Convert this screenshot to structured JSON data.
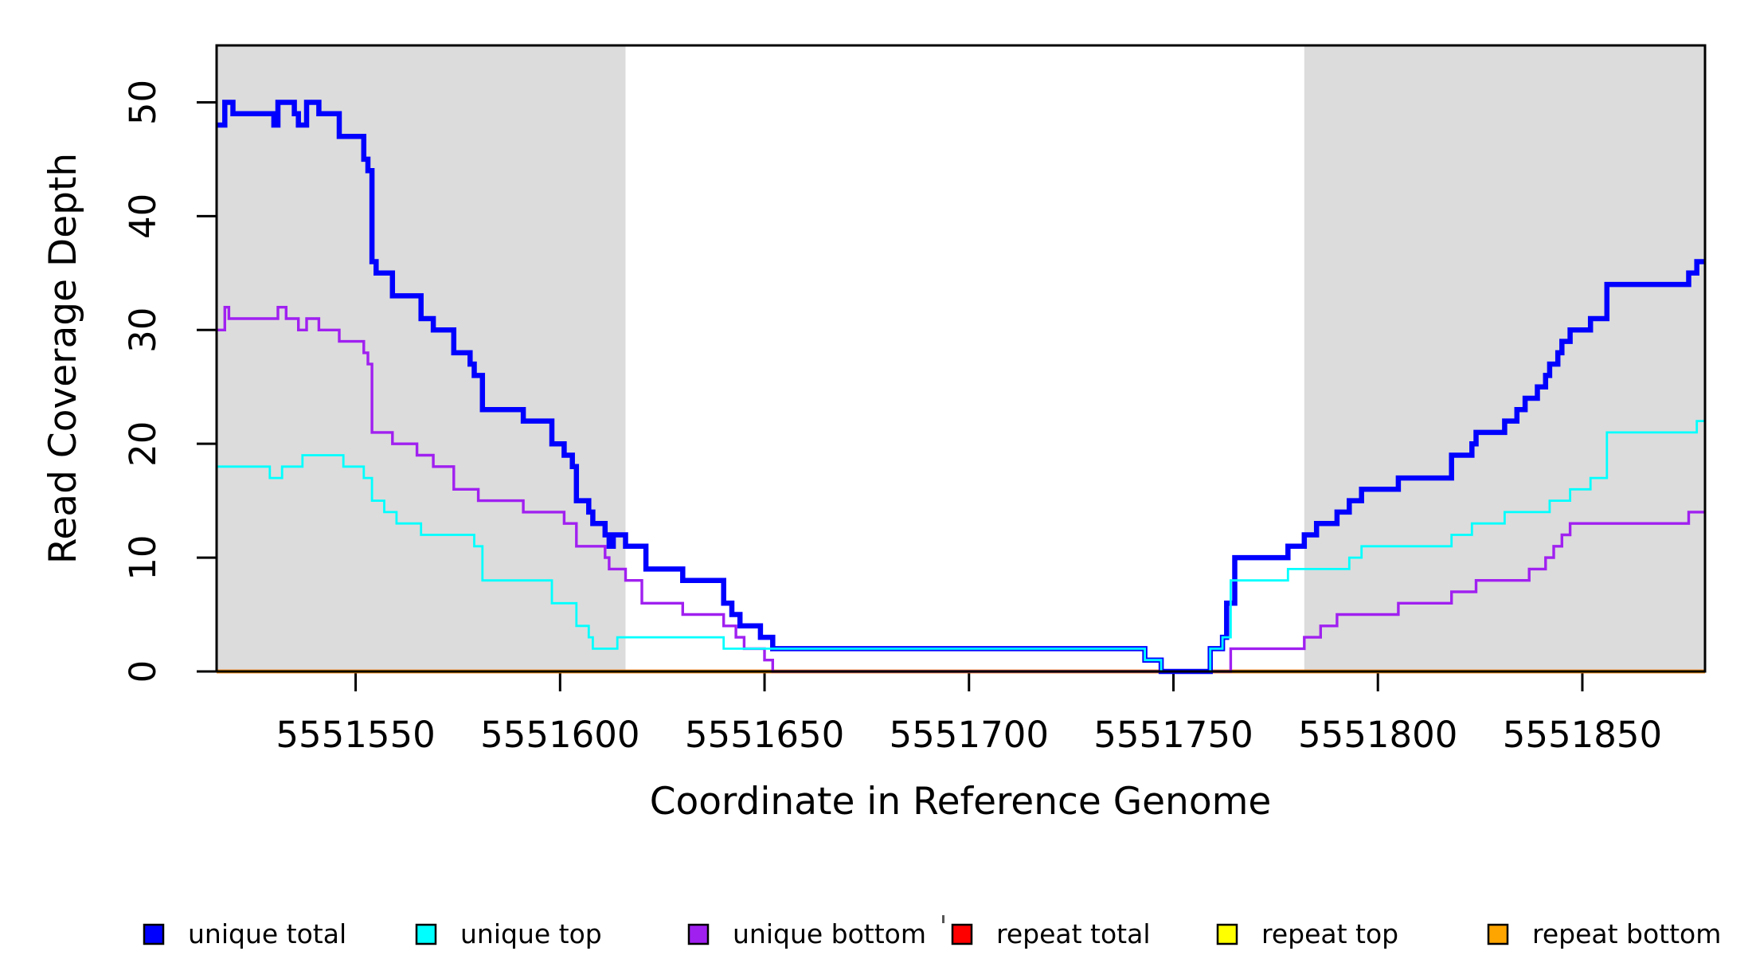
{
  "chart_data": {
    "type": "line",
    "subtype": "step-coverage-plot",
    "title": "",
    "xlabel": "Coordinate in Reference Genome",
    "ylabel": "Read Coverage Depth",
    "xlim": [
      5551516,
      5551880
    ],
    "ylim": [
      0,
      55
    ],
    "x_ticks": [
      5551550,
      5551600,
      5551650,
      5551700,
      5551750,
      5551800,
      5551850
    ],
    "y_ticks": [
      0,
      10,
      20,
      30,
      40,
      50
    ],
    "grid": "off",
    "legend_position": "bottom",
    "shade_color": "#DCDCDC",
    "background_color": "#FFFFFF",
    "shaded_regions": [
      {
        "x0": 5551516,
        "x1": 5551616
      },
      {
        "x0": 5551782,
        "x1": 5551880
      }
    ],
    "draw_order": [
      3,
      4,
      5,
      2,
      0,
      1
    ],
    "series": [
      {
        "name": "unique total",
        "color": "#0000FF",
        "width": 6.5,
        "steps": [
          [
            5551516,
            48
          ],
          [
            5551518,
            50
          ],
          [
            5551520,
            49
          ],
          [
            5551530,
            48
          ],
          [
            5551531,
            50
          ],
          [
            5551535,
            49
          ],
          [
            5551536,
            48
          ],
          [
            5551538,
            50
          ],
          [
            5551541,
            49
          ],
          [
            5551546,
            47
          ],
          [
            5551552,
            45
          ],
          [
            5551553,
            44
          ],
          [
            5551554,
            36
          ],
          [
            5551555,
            35
          ],
          [
            5551559,
            33
          ],
          [
            5551566,
            31
          ],
          [
            5551569,
            30
          ],
          [
            5551574,
            28
          ],
          [
            5551578,
            27
          ],
          [
            5551579,
            26
          ],
          [
            5551581,
            23
          ],
          [
            5551591,
            22
          ],
          [
            5551598,
            20
          ],
          [
            5551601,
            19
          ],
          [
            5551603,
            18
          ],
          [
            5551604,
            15
          ],
          [
            5551607,
            14
          ],
          [
            5551608,
            13
          ],
          [
            5551611,
            12
          ],
          [
            5551612,
            11
          ],
          [
            5551613,
            12
          ],
          [
            5551616,
            11
          ],
          [
            5551621,
            9
          ],
          [
            5551630,
            8
          ],
          [
            5551640,
            6
          ],
          [
            5551642,
            5
          ],
          [
            5551644,
            4
          ],
          [
            5551649,
            3
          ],
          [
            5551652,
            2
          ],
          [
            5551743,
            1
          ],
          [
            5551747,
            0
          ],
          [
            5551759,
            2
          ],
          [
            5551762,
            3
          ],
          [
            5551763,
            6
          ],
          [
            5551765,
            10
          ],
          [
            5551778,
            11
          ],
          [
            5551782,
            12
          ],
          [
            5551785,
            13
          ],
          [
            5551790,
            14
          ],
          [
            5551793,
            15
          ],
          [
            5551796,
            16
          ],
          [
            5551805,
            17
          ],
          [
            5551818,
            19
          ],
          [
            5551823,
            20
          ],
          [
            5551824,
            21
          ],
          [
            5551831,
            22
          ],
          [
            5551834,
            23
          ],
          [
            5551836,
            24
          ],
          [
            5551839,
            25
          ],
          [
            5551841,
            26
          ],
          [
            5551842,
            27
          ],
          [
            5551844,
            28
          ],
          [
            5551845,
            29
          ],
          [
            5551847,
            30
          ],
          [
            5551852,
            31
          ],
          [
            5551856,
            34
          ],
          [
            5551876,
            35
          ],
          [
            5551878,
            36
          ]
        ]
      },
      {
        "name": "unique top",
        "color": "#00FFFF",
        "width": 2.8,
        "steps": [
          [
            5551516,
            18
          ],
          [
            5551529,
            17
          ],
          [
            5551532,
            18
          ],
          [
            5551537,
            19
          ],
          [
            5551547,
            18
          ],
          [
            5551552,
            17
          ],
          [
            5551554,
            15
          ],
          [
            5551557,
            14
          ],
          [
            5551560,
            13
          ],
          [
            5551566,
            12
          ],
          [
            5551579,
            11
          ],
          [
            5551581,
            8
          ],
          [
            5551598,
            6
          ],
          [
            5551604,
            4
          ],
          [
            5551607,
            3
          ],
          [
            5551608,
            2
          ],
          [
            5551614,
            3
          ],
          [
            5551640,
            2
          ],
          [
            5551743,
            1
          ],
          [
            5551747,
            0
          ],
          [
            5551759,
            2
          ],
          [
            5551762,
            3
          ],
          [
            5551764,
            8
          ],
          [
            5551778,
            9
          ],
          [
            5551793,
            10
          ],
          [
            5551796,
            11
          ],
          [
            5551818,
            12
          ],
          [
            5551823,
            13
          ],
          [
            5551831,
            14
          ],
          [
            5551842,
            15
          ],
          [
            5551847,
            16
          ],
          [
            5551852,
            17
          ],
          [
            5551856,
            21
          ],
          [
            5551878,
            22
          ]
        ]
      },
      {
        "name": "unique bottom",
        "color": "#A020F0",
        "width": 3.4,
        "steps": [
          [
            5551516,
            30
          ],
          [
            5551518,
            32
          ],
          [
            5551519,
            31
          ],
          [
            5551531,
            32
          ],
          [
            5551533,
            31
          ],
          [
            5551536,
            30
          ],
          [
            5551538,
            31
          ],
          [
            5551541,
            30
          ],
          [
            5551546,
            29
          ],
          [
            5551552,
            28
          ],
          [
            5551553,
            27
          ],
          [
            5551554,
            21
          ],
          [
            5551559,
            20
          ],
          [
            5551565,
            19
          ],
          [
            5551569,
            18
          ],
          [
            5551574,
            16
          ],
          [
            5551580,
            15
          ],
          [
            5551591,
            14
          ],
          [
            5551601,
            13
          ],
          [
            5551604,
            11
          ],
          [
            5551611,
            10
          ],
          [
            5551612,
            9
          ],
          [
            5551616,
            8
          ],
          [
            5551620,
            6
          ],
          [
            5551630,
            5
          ],
          [
            5551640,
            4
          ],
          [
            5551643,
            3
          ],
          [
            5551645,
            2
          ],
          [
            5551650,
            1
          ],
          [
            5551652,
            0
          ],
          [
            5551764,
            2
          ],
          [
            5551782,
            3
          ],
          [
            5551786,
            4
          ],
          [
            5551790,
            5
          ],
          [
            5551805,
            6
          ],
          [
            5551818,
            7
          ],
          [
            5551824,
            8
          ],
          [
            5551837,
            9
          ],
          [
            5551841,
            10
          ],
          [
            5551843,
            11
          ],
          [
            5551845,
            12
          ],
          [
            5551847,
            13
          ],
          [
            5551876,
            14
          ]
        ]
      },
      {
        "name": "repeat total",
        "color": "#FF0000",
        "width": 4.4,
        "steps": [
          [
            5551516,
            0
          ]
        ]
      },
      {
        "name": "repeat top",
        "color": "#FFFF00",
        "width": 3.0,
        "steps": [
          [
            5551516,
            0
          ]
        ]
      },
      {
        "name": "repeat bottom",
        "color": "#FFA500",
        "width": 4.4,
        "steps": [
          [
            5551516,
            0
          ]
        ]
      }
    ]
  }
}
